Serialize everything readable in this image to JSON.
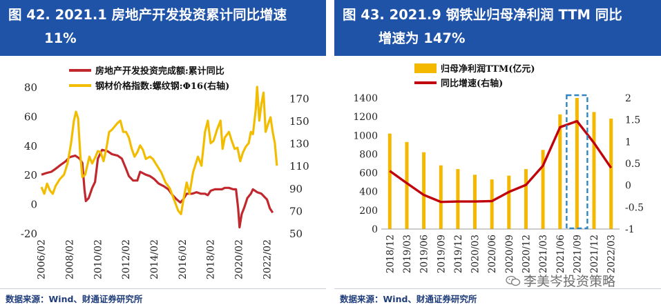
{
  "left": {
    "title_line1": "图 42. 2021.1  房地产开发投资累计同比增速",
    "title_line2": "11%",
    "source": "数据来源：Wind、财通证券研究所",
    "chart_data": {
      "type": "line",
      "legend": [
        "房地产开发投资完成额:累计同比",
        "钢材价格指数:螺纹钢:Φ16(右轴)"
      ],
      "legend_placement": "top",
      "x_ticks": [
        "2006/02",
        "2008/02",
        "2010/02",
        "2012/02",
        "2014/02",
        "2016/02",
        "2018/02",
        "2020/02",
        "2022/02"
      ],
      "xlim": [
        2006.0,
        2023.0
      ],
      "ylim_left": [
        -20,
        80
      ],
      "yticks_left": [
        -20,
        0,
        20,
        40,
        60,
        80
      ],
      "ylim_right": [
        50,
        180
      ],
      "yticks_right": [
        50,
        70,
        90,
        110,
        130,
        150,
        170
      ],
      "colors": {
        "investment": "#c0282d",
        "steel": "#f2bd00"
      },
      "series": [
        {
          "name": "房地产开发投资完成额:累计同比",
          "axis": "left",
          "color": "#c0282d",
          "points": [
            [
              2006.1,
              20
            ],
            [
              2006.4,
              21
            ],
            [
              2006.8,
              22
            ],
            [
              2007.1,
              24
            ],
            [
              2007.5,
              27
            ],
            [
              2007.8,
              29
            ],
            [
              2008.1,
              32
            ],
            [
              2008.5,
              33
            ],
            [
              2008.8,
              31
            ],
            [
              2009.0,
              28
            ],
            [
              2009.15,
              10
            ],
            [
              2009.25,
              2
            ],
            [
              2009.45,
              4
            ],
            [
              2009.7,
              11
            ],
            [
              2009.9,
              15
            ],
            [
              2010.1,
              31
            ],
            [
              2010.4,
              37
            ],
            [
              2010.8,
              36
            ],
            [
              2011.1,
              34
            ],
            [
              2011.5,
              33
            ],
            [
              2011.8,
              31
            ],
            [
              2012.1,
              24
            ],
            [
              2012.3,
              19
            ],
            [
              2012.6,
              16
            ],
            [
              2012.9,
              16
            ],
            [
              2013.1,
              22
            ],
            [
              2013.5,
              20
            ],
            [
              2013.8,
              19
            ],
            [
              2014.1,
              17
            ],
            [
              2014.4,
              14
            ],
            [
              2014.8,
              12
            ],
            [
              2015.1,
              10
            ],
            [
              2015.4,
              6
            ],
            [
              2015.7,
              3
            ],
            [
              2015.95,
              1
            ],
            [
              2016.15,
              3
            ],
            [
              2016.4,
              7
            ],
            [
              2016.8,
              7
            ],
            [
              2017.1,
              8
            ],
            [
              2017.4,
              7
            ],
            [
              2017.7,
              7
            ],
            [
              2017.9,
              6
            ],
            [
              2018.1,
              9
            ],
            [
              2018.4,
              10
            ],
            [
              2018.7,
              10
            ],
            [
              2018.9,
              10
            ],
            [
              2019.1,
              11
            ],
            [
              2019.4,
              11
            ],
            [
              2019.7,
              10
            ],
            [
              2019.9,
              10
            ],
            [
              2020.05,
              -3
            ],
            [
              2020.15,
              -16
            ],
            [
              2020.3,
              -7
            ],
            [
              2020.5,
              -2
            ],
            [
              2020.7,
              4
            ],
            [
              2020.95,
              7
            ],
            [
              2021.1,
              10
            ],
            [
              2021.4,
              8
            ],
            [
              2021.7,
              7
            ],
            [
              2021.9,
              5
            ],
            [
              2022.1,
              3
            ],
            [
              2022.3,
              -3
            ],
            [
              2022.5,
              -6
            ]
          ]
        },
        {
          "name": "钢材价格指数:螺纹钢:Φ16(右轴)",
          "axis": "right",
          "color": "#f2bd00",
          "points": [
            [
              2006.1,
              91
            ],
            [
              2006.3,
              85
            ],
            [
              2006.5,
              94
            ],
            [
              2006.7,
              88
            ],
            [
              2006.9,
              85
            ],
            [
              2007.1,
              92
            ],
            [
              2007.4,
              98
            ],
            [
              2007.7,
              102
            ],
            [
              2007.95,
              112
            ],
            [
              2008.2,
              130
            ],
            [
              2008.4,
              150
            ],
            [
              2008.55,
              158
            ],
            [
              2008.7,
              152
            ],
            [
              2008.85,
              120
            ],
            [
              2009.0,
              100
            ],
            [
              2009.2,
              102
            ],
            [
              2009.5,
              118
            ],
            [
              2009.7,
              112
            ],
            [
              2009.9,
              117
            ],
            [
              2010.1,
              123
            ],
            [
              2010.3,
              122
            ],
            [
              2010.5,
              114
            ],
            [
              2010.7,
              125
            ],
            [
              2010.9,
              140
            ],
            [
              2011.1,
              142
            ],
            [
              2011.3,
              145
            ],
            [
              2011.5,
              148
            ],
            [
              2011.7,
              150
            ],
            [
              2011.9,
              140
            ],
            [
              2012.1,
              140
            ],
            [
              2012.3,
              135
            ],
            [
              2012.5,
              125
            ],
            [
              2012.7,
              118
            ],
            [
              2012.9,
              122
            ],
            [
              2013.1,
              128
            ],
            [
              2013.3,
              124
            ],
            [
              2013.5,
              116
            ],
            [
              2013.8,
              118
            ],
            [
              2014.0,
              116
            ],
            [
              2014.3,
              110
            ],
            [
              2014.6,
              104
            ],
            [
              2014.9,
              95
            ],
            [
              2015.2,
              90
            ],
            [
              2015.5,
              80
            ],
            [
              2015.8,
              70
            ],
            [
              2016.0,
              67
            ],
            [
              2016.2,
              82
            ],
            [
              2016.4,
              95
            ],
            [
              2016.6,
              85
            ],
            [
              2016.85,
              104
            ],
            [
              2017.0,
              110
            ],
            [
              2017.2,
              118
            ],
            [
              2017.45,
              110
            ],
            [
              2017.7,
              140
            ],
            [
              2017.9,
              150
            ],
            [
              2018.1,
              130
            ],
            [
              2018.3,
              132
            ],
            [
              2018.55,
              142
            ],
            [
              2018.8,
              150
            ],
            [
              2018.95,
              125
            ],
            [
              2019.1,
              135
            ],
            [
              2019.4,
              140
            ],
            [
              2019.6,
              132
            ],
            [
              2019.8,
              125
            ],
            [
              2020.0,
              126
            ],
            [
              2020.2,
              114
            ],
            [
              2020.4,
              122
            ],
            [
              2020.6,
              127
            ],
            [
              2020.8,
              130
            ],
            [
              2020.95,
              140
            ],
            [
              2021.1,
              138
            ],
            [
              2021.3,
              160
            ],
            [
              2021.4,
              180
            ],
            [
              2021.55,
              150
            ],
            [
              2021.7,
              165
            ],
            [
              2021.85,
              175
            ],
            [
              2022.0,
              140
            ],
            [
              2022.2,
              148
            ],
            [
              2022.35,
              153
            ],
            [
              2022.5,
              140
            ],
            [
              2022.65,
              130
            ],
            [
              2022.8,
              110
            ]
          ]
        }
      ]
    }
  },
  "right": {
    "title_line1": "图 43. 2021.9  钢铁业归母净利润  TTM  同比",
    "title_line2": "增速为 147%",
    "source": "数据来源：Wind、财通证券研究所",
    "watermark": "李美岑投资策略",
    "chart_data": {
      "type": "bar",
      "legend": [
        "归母净利润TTM(亿元)",
        "同比增速(右轴)"
      ],
      "legend_placement": "top-left",
      "categories": [
        "2018/12",
        "2019/03",
        "2019/06",
        "2019/09",
        "2019/12",
        "2020/03",
        "2020/06",
        "2020/09",
        "2020/12",
        "2021/03",
        "2021/06",
        "2021/09",
        "2021/12",
        "2022/03"
      ],
      "bars": [
        1020,
        930,
        820,
        680,
        640,
        580,
        530,
        570,
        640,
        845,
        1225,
        1400,
        1250,
        1180
      ],
      "line": [
        0.33,
        0.05,
        -0.22,
        -0.38,
        -0.37,
        -0.37,
        -0.36,
        -0.15,
        0.01,
        0.45,
        1.33,
        1.47,
        0.97,
        0.4
      ],
      "ylim_left": [
        0,
        1400
      ],
      "yticks_left": [
        0,
        200,
        400,
        600,
        800,
        1000,
        1200,
        1400
      ],
      "ylim_right": [
        -1,
        2
      ],
      "yticks_right": [
        -1,
        -0.5,
        0,
        0.5,
        1,
        1.5,
        2
      ],
      "highlight_category": "2021/09",
      "colors": {
        "bar": "#f5b800",
        "line": "#c0000b",
        "highlight": "#2e86c1"
      }
    }
  }
}
